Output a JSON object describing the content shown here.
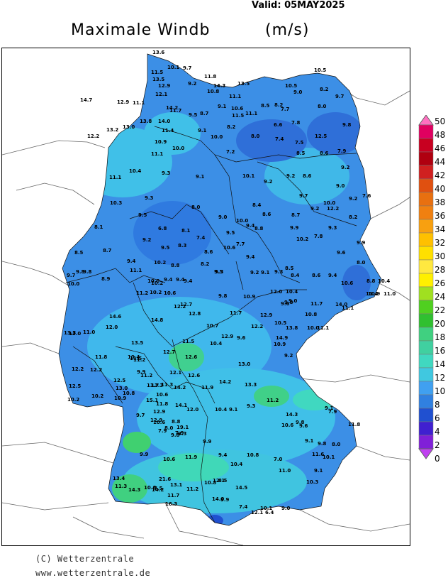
{
  "header": {
    "valid": "Valid:  05MAY2025",
    "title": "Maximale Windb",
    "unit": "(m/s)"
  },
  "footer": {
    "copyright": "(C) Wetterzentrale",
    "url": "www.wetterzentrale.de"
  },
  "legend": {
    "values": [
      "50",
      "48",
      "46",
      "44",
      "42",
      "40",
      "38",
      "36",
      "34",
      "32",
      "30",
      "28",
      "26",
      "24",
      "22",
      "20",
      "18",
      "16",
      "14",
      "12",
      "10",
      "8",
      "6",
      "4",
      "2",
      "0"
    ],
    "colors": [
      "#ff70c0",
      "#e00060",
      "#c80020",
      "#b00010",
      "#d02020",
      "#e05010",
      "#e87010",
      "#f08010",
      "#f8a010",
      "#ffc000",
      "#ffe000",
      "#ffe840",
      "#fff000",
      "#a0e020",
      "#50d020",
      "#30c030",
      "#40d080",
      "#40d0a0",
      "#40d8c0",
      "#40c8e0",
      "#40a0f0",
      "#3080e0",
      "#2050d0",
      "#4020d0",
      "#8020d8",
      "#c040f0"
    ]
  },
  "map": {
    "labels": [
      {
        "t": "13.6"
      },
      {
        "t": "10.1"
      },
      {
        "t": "9.7"
      },
      {
        "t": "11.5"
      },
      {
        "t": "13.5"
      },
      {
        "t": "12.9"
      },
      {
        "t": "11.8"
      },
      {
        "t": "9.2"
      },
      {
        "t": "14.3"
      },
      {
        "t": "13.5"
      },
      {
        "t": "10.8"
      },
      {
        "t": "12.1"
      },
      {
        "t": "11.1"
      },
      {
        "t": "10.5"
      },
      {
        "t": "9.0"
      },
      {
        "t": "8.2"
      },
      {
        "t": "10.5"
      },
      {
        "t": "9.7"
      },
      {
        "t": "14.7"
      },
      {
        "t": "12.9"
      },
      {
        "t": "11.1"
      },
      {
        "t": "14.2"
      },
      {
        "t": "11.7"
      },
      {
        "t": "9.5"
      },
      {
        "t": "8.7"
      },
      {
        "t": "9.1"
      },
      {
        "t": "10.6"
      },
      {
        "t": "11.5"
      },
      {
        "t": "11.1"
      },
      {
        "t": "8.5"
      },
      {
        "t": "8.2"
      },
      {
        "t": "7.7"
      },
      {
        "t": "8.0"
      },
      {
        "t": "9.8"
      },
      {
        "t": "13.8"
      },
      {
        "t": "14.0"
      },
      {
        "t": "13.2"
      },
      {
        "t": "13.0"
      },
      {
        "t": "12.2"
      },
      {
        "t": "11.4"
      },
      {
        "t": "9.1"
      },
      {
        "t": "10.0"
      },
      {
        "t": "8.2"
      },
      {
        "t": "8.0"
      },
      {
        "t": "6.6"
      },
      {
        "t": "7.8"
      },
      {
        "t": "7.4"
      },
      {
        "t": "12.5"
      },
      {
        "t": "10.9"
      },
      {
        "t": "10.0"
      },
      {
        "t": "11.1"
      },
      {
        "t": "7.2"
      },
      {
        "t": "7.5"
      },
      {
        "t": "8.5"
      },
      {
        "t": "8.6"
      },
      {
        "t": "7.9"
      },
      {
        "t": "10.4"
      },
      {
        "t": "9.3"
      },
      {
        "t": "11.1"
      },
      {
        "t": "9.1"
      },
      {
        "t": "10.1"
      },
      {
        "t": "9.2"
      },
      {
        "t": "9.2"
      },
      {
        "t": "8.6"
      },
      {
        "t": "9.2"
      },
      {
        "t": "9.0"
      },
      {
        "t": "7.6"
      },
      {
        "t": "9.3"
      },
      {
        "t": "10.3"
      },
      {
        "t": "8.4"
      },
      {
        "t": "9.7"
      },
      {
        "t": "10.0"
      },
      {
        "t": "9.2"
      },
      {
        "t": "12.2"
      },
      {
        "t": "9.2"
      },
      {
        "t": "8.2"
      },
      {
        "t": "9.5"
      },
      {
        "t": "8.0"
      },
      {
        "t": "9.0"
      },
      {
        "t": "8.6"
      },
      {
        "t": "8.7"
      },
      {
        "t": "10.0"
      },
      {
        "t": "9.4"
      },
      {
        "t": "8.1"
      },
      {
        "t": "6.8"
      },
      {
        "t": "8.1"
      },
      {
        "t": "8.8"
      },
      {
        "t": "9.5"
      },
      {
        "t": "9.9"
      },
      {
        "t": "9.3"
      },
      {
        "t": "9.2"
      },
      {
        "t": "7.4"
      },
      {
        "t": "7.7"
      },
      {
        "t": "10.2"
      },
      {
        "t": "7.8"
      },
      {
        "t": "9.9"
      },
      {
        "t": "8.5"
      },
      {
        "t": "8.7"
      },
      {
        "t": "8.3"
      },
      {
        "t": "9.5"
      },
      {
        "t": "8.6"
      },
      {
        "t": "10.6"
      },
      {
        "t": "9.4"
      },
      {
        "t": "9.6"
      },
      {
        "t": "9.4"
      },
      {
        "t": "10.2"
      },
      {
        "t": "8.8"
      },
      {
        "t": "8.0"
      },
      {
        "t": "9.8"
      },
      {
        "t": "11.1"
      },
      {
        "t": "8.2"
      },
      {
        "t": "9.3"
      },
      {
        "t": "9.2"
      },
      {
        "t": "9.1"
      },
      {
        "t": "9.3"
      },
      {
        "t": "8.4"
      },
      {
        "t": "8.6"
      },
      {
        "t": "8.5"
      },
      {
        "t": "9.4"
      },
      {
        "t": "9.7"
      },
      {
        "t": "8.9"
      },
      {
        "t": "10.0"
      },
      {
        "t": "9.4"
      },
      {
        "t": "9.4"
      },
      {
        "t": "9.5"
      },
      {
        "t": "9.8"
      },
      {
        "t": "10.2"
      },
      {
        "t": "10.0"
      },
      {
        "t": "9.4"
      },
      {
        "t": "10.6"
      },
      {
        "t": "8.8"
      },
      {
        "t": "10.4"
      },
      {
        "t": "11.0"
      },
      {
        "t": "10.2"
      },
      {
        "t": "11.2"
      },
      {
        "t": "10.6"
      },
      {
        "t": "12.0"
      },
      {
        "t": "10.4"
      },
      {
        "t": "9.8"
      },
      {
        "t": "9.8"
      },
      {
        "t": "10.9"
      },
      {
        "t": "9.6"
      },
      {
        "t": "11.4"
      },
      {
        "t": "10.9"
      },
      {
        "t": "11.7"
      },
      {
        "t": "14.0"
      },
      {
        "t": "10.8"
      },
      {
        "t": "11.1"
      },
      {
        "t": "14.6"
      },
      {
        "t": "14.8"
      },
      {
        "t": "12.2"
      },
      {
        "t": "12.7"
      },
      {
        "t": "12.8"
      },
      {
        "t": "10.7"
      },
      {
        "t": "11.7"
      },
      {
        "t": "12.2"
      },
      {
        "t": "12.9"
      },
      {
        "t": "10.5"
      },
      {
        "t": "13.8"
      },
      {
        "t": "10.0"
      },
      {
        "t": "11.1"
      },
      {
        "t": "9.0"
      },
      {
        "t": "13.3"
      },
      {
        "t": "11.0"
      },
      {
        "t": "12.0"
      },
      {
        "t": "13.0"
      },
      {
        "t": "13.5"
      },
      {
        "t": "11.5"
      },
      {
        "t": "10.4"
      },
      {
        "t": "12.9"
      },
      {
        "t": "9.6"
      },
      {
        "t": "14.9"
      },
      {
        "t": "10.9"
      },
      {
        "t": "9.2"
      },
      {
        "t": "12.7"
      },
      {
        "t": "12.6"
      },
      {
        "t": "10.4"
      },
      {
        "t": "11.8"
      },
      {
        "t": "11.5"
      },
      {
        "t": "11.2"
      },
      {
        "t": "13.0"
      },
      {
        "t": "12.2"
      },
      {
        "t": "12.2"
      },
      {
        "t": "12.1"
      },
      {
        "t": "12.6"
      },
      {
        "t": "11.2"
      },
      {
        "t": "9.9"
      },
      {
        "t": "12.5"
      },
      {
        "t": "13.0"
      },
      {
        "t": "13.3"
      },
      {
        "t": "11.3"
      },
      {
        "t": "14.2"
      },
      {
        "t": "11.9"
      },
      {
        "t": "14.2"
      },
      {
        "t": "13.3"
      },
      {
        "t": "13.7"
      },
      {
        "t": "12.5"
      },
      {
        "t": "10.8"
      },
      {
        "t": "10.6"
      },
      {
        "t": "10.2"
      },
      {
        "t": "10.2"
      },
      {
        "t": "10.9"
      },
      {
        "t": "15.1"
      },
      {
        "t": "11.8"
      },
      {
        "t": "14.1"
      },
      {
        "t": "12.9"
      },
      {
        "t": "12.9"
      },
      {
        "t": "12.0"
      },
      {
        "t": "10.4"
      },
      {
        "t": "9.1"
      },
      {
        "t": "9.3"
      },
      {
        "t": "11.2"
      },
      {
        "t": "14.3"
      },
      {
        "t": "9.1"
      },
      {
        "t": "7.9"
      },
      {
        "t": "9.8"
      },
      {
        "t": "10.6"
      },
      {
        "t": "7.9"
      },
      {
        "t": "8.8"
      },
      {
        "t": "19.1"
      },
      {
        "t": "9.3"
      },
      {
        "t": "11.8"
      },
      {
        "t": "8.0"
      },
      {
        "t": "7.9"
      },
      {
        "t": "10.6"
      },
      {
        "t": "9.6"
      },
      {
        "t": "9.7"
      },
      {
        "t": "9.8"
      },
      {
        "t": "9.9"
      },
      {
        "t": "9.8"
      },
      {
        "t": "8.0"
      },
      {
        "t": "9.1"
      },
      {
        "t": "10.4"
      },
      {
        "t": "9.9"
      },
      {
        "t": "9.4"
      },
      {
        "t": "10.8"
      },
      {
        "t": "11.9"
      },
      {
        "t": "7.0"
      },
      {
        "t": "11.6"
      },
      {
        "t": "10.1"
      },
      {
        "t": "8.5"
      },
      {
        "t": "10.6"
      },
      {
        "t": "21.6"
      },
      {
        "t": "11.0"
      },
      {
        "t": "13.4"
      },
      {
        "t": "10.6"
      },
      {
        "t": "13.1"
      },
      {
        "t": "14.5"
      },
      {
        "t": "10.3"
      },
      {
        "t": "11.3"
      },
      {
        "t": "14.3"
      },
      {
        "t": "14.2"
      },
      {
        "t": "11.2"
      },
      {
        "t": "16.3"
      },
      {
        "t": "7.4"
      },
      {
        "t": "10.1"
      },
      {
        "t": "9.0"
      },
      {
        "t": "11.7"
      },
      {
        "t": "7.5"
      },
      {
        "t": "10.8"
      },
      {
        "t": "12.1"
      },
      {
        "t": "14.0"
      },
      {
        "t": "9.9"
      },
      {
        "t": "6.4"
      },
      {
        "t": "12.1"
      },
      {
        "t": "9.1"
      }
    ]
  }
}
